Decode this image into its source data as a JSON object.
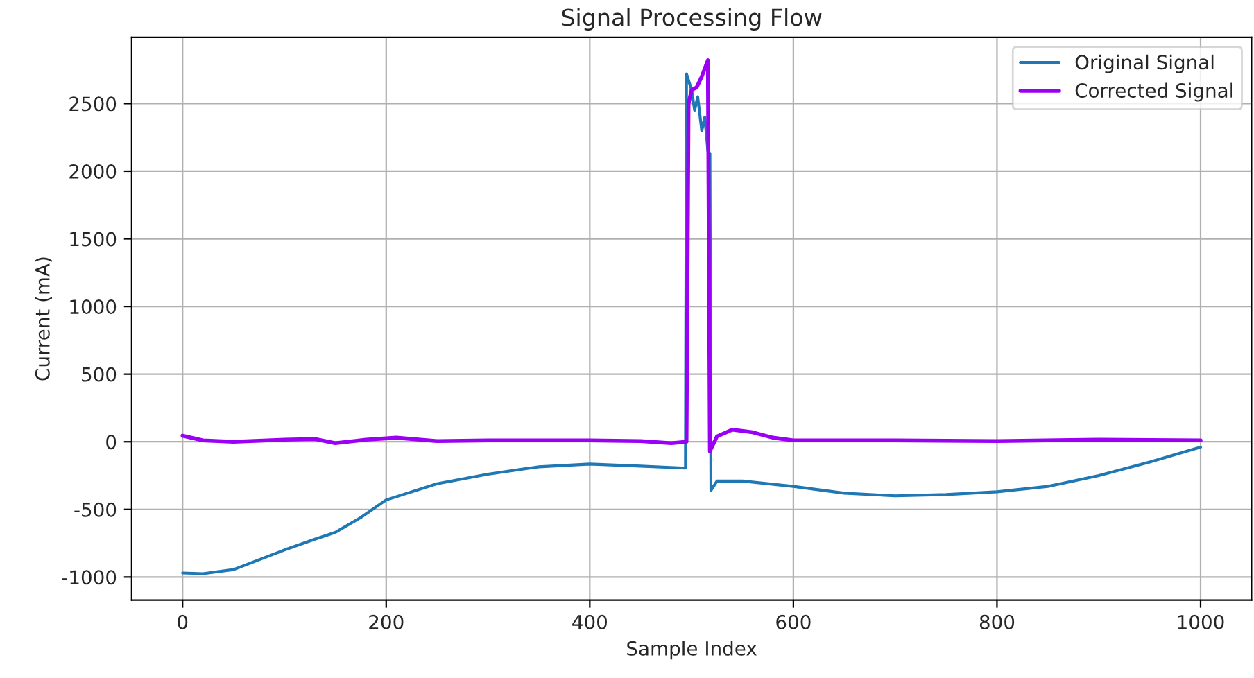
{
  "chart_data": {
    "type": "line",
    "title": "Signal Processing Flow",
    "xlabel": "Sample Index",
    "ylabel": "Current (mA)",
    "xlim": [
      -50,
      1050
    ],
    "ylim": [
      -1170,
      2990
    ],
    "xticks": [
      0,
      200,
      400,
      600,
      800,
      1000
    ],
    "yticks": [
      -1000,
      -500,
      0,
      500,
      1000,
      1500,
      2000,
      2500
    ],
    "grid": true,
    "legend": "top right",
    "line_style": "solid",
    "marker": "none",
    "series": [
      {
        "name": "Original Signal",
        "color": "#1f77b4",
        "x": [
          0,
          20,
          50,
          100,
          130,
          150,
          175,
          200,
          250,
          300,
          350,
          400,
          450,
          494,
          495,
          500,
          503,
          506,
          510,
          513,
          516,
          518,
          519,
          525,
          550,
          600,
          650,
          700,
          750,
          800,
          850,
          900,
          950,
          1000
        ],
        "values": [
          -970,
          -975,
          -945,
          -800,
          -720,
          -670,
          -560,
          -430,
          -310,
          -240,
          -185,
          -165,
          -180,
          -195,
          2720,
          2600,
          2450,
          2550,
          2300,
          2400,
          2150,
          2130,
          -360,
          -290,
          -290,
          -330,
          -380,
          -400,
          -390,
          -370,
          -330,
          -250,
          -150,
          -40
        ]
      },
      {
        "name": "Corrected Signal",
        "color": "#9b00f5",
        "x": [
          0,
          20,
          50,
          100,
          130,
          150,
          180,
          210,
          250,
          300,
          400,
          450,
          480,
          495,
          497,
          500,
          505,
          510,
          516,
          518,
          525,
          540,
          560,
          580,
          600,
          700,
          800,
          900,
          1000
        ],
        "values": [
          45,
          10,
          0,
          15,
          20,
          -10,
          15,
          30,
          5,
          10,
          10,
          5,
          -10,
          0,
          2500,
          2600,
          2620,
          2700,
          2820,
          -70,
          40,
          90,
          70,
          30,
          10,
          10,
          5,
          15,
          10
        ]
      }
    ]
  }
}
